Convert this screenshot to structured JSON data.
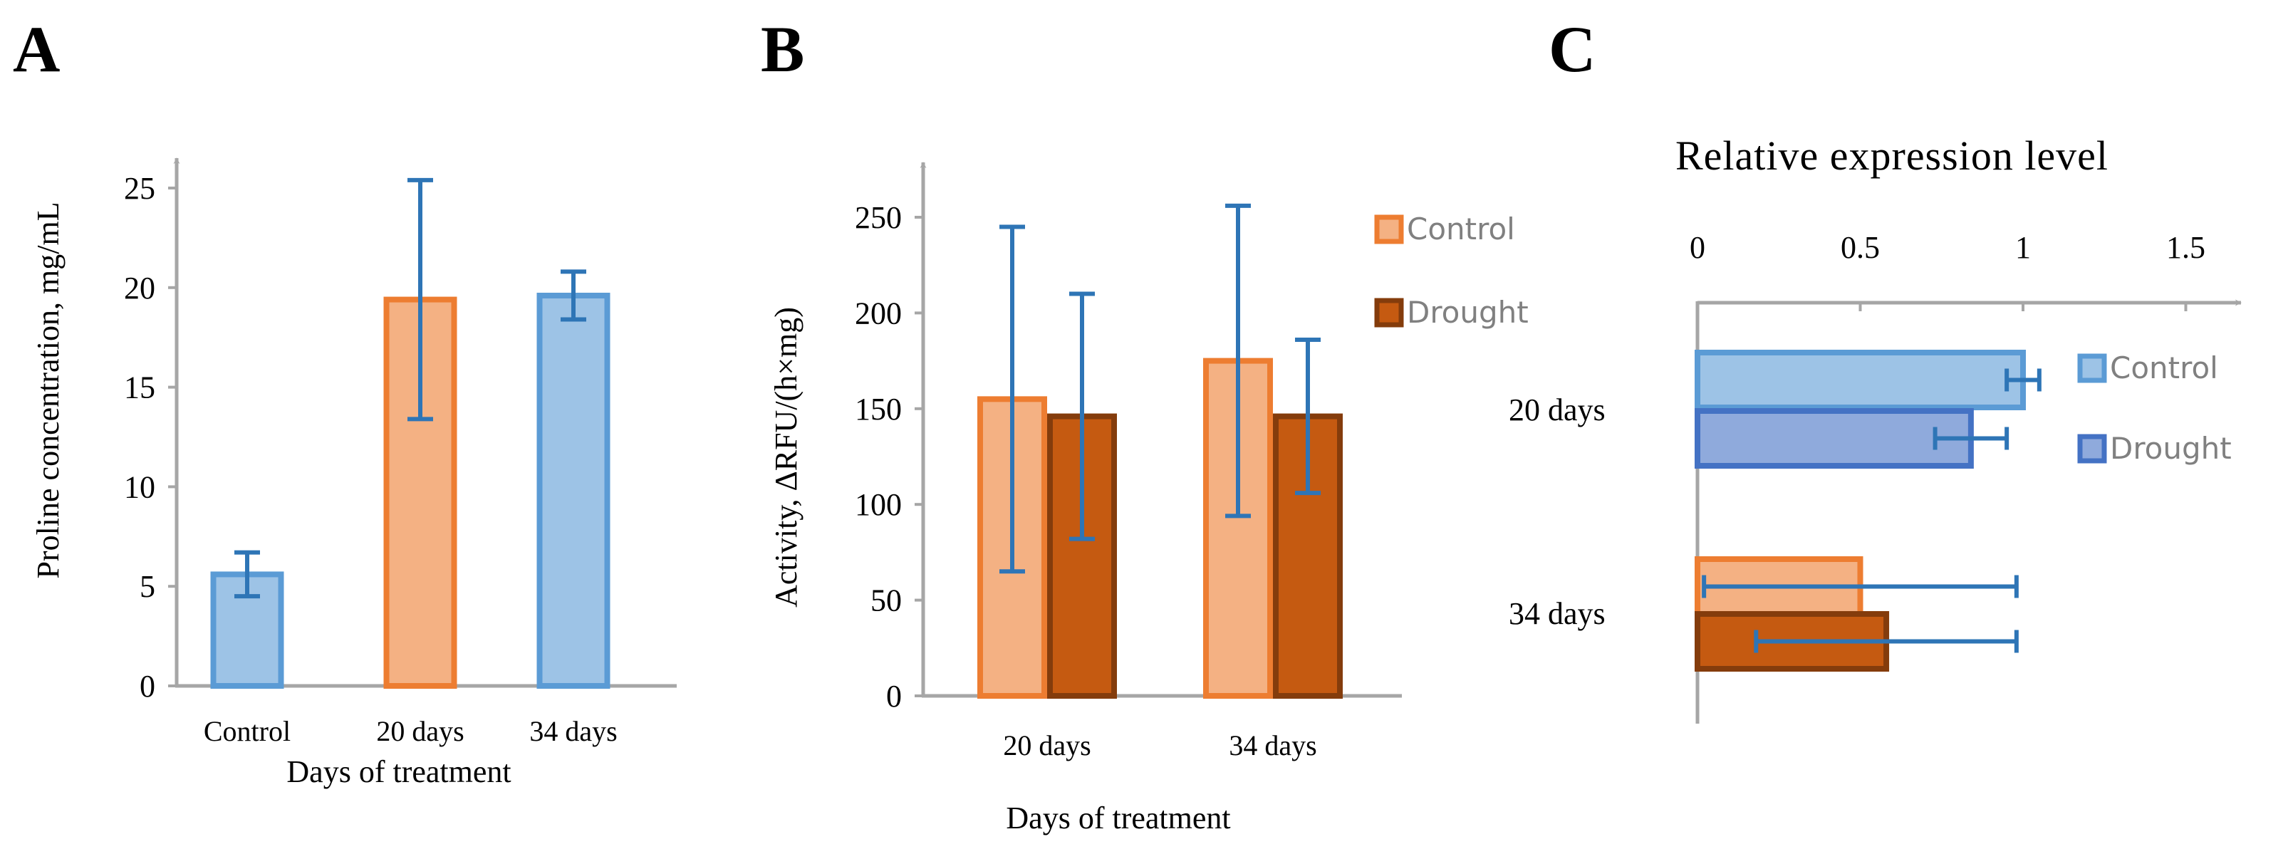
{
  "colors": {
    "axis": "#a6a6a6",
    "error_bar": "#2e75b6",
    "control_blue_fill": "#9dc3e6",
    "control_blue_stroke": "#5b9bd5",
    "drought_blue_fill": "#8faadc",
    "drought_blue_stroke": "#4472c4",
    "orange_light_fill": "#f4b183",
    "orange_light_stroke": "#ed7d31",
    "orange_dark_fill": "#c55a11",
    "orange_dark_stroke": "#843c0c"
  },
  "chart_data": [
    {
      "panel_label": "A",
      "type": "bar",
      "categories": [
        "Control",
        "20 days",
        "34 days"
      ],
      "values": [
        5.6,
        19.4,
        19.6
      ],
      "errors": [
        1.1,
        6.0,
        1.2
      ],
      "bar_colors": [
        "blue",
        "orange",
        "blue"
      ],
      "ylabel": "Proline concentration, mg/mL",
      "xlabel": "Days of treatment",
      "ylim": [
        0,
        25
      ],
      "yticks": [
        "0",
        "5",
        "10",
        "15",
        "20",
        "25"
      ],
      "grid": false
    },
    {
      "panel_label": "B",
      "type": "bar",
      "categories": [
        "20 days",
        "34 days"
      ],
      "series": [
        {
          "name": "Control",
          "values": [
            155,
            175
          ],
          "errors": [
            90,
            81
          ]
        },
        {
          "name": "Drought",
          "values": [
            146,
            146
          ],
          "errors": [
            64,
            40
          ]
        }
      ],
      "ylabel": "Activity, ΔRFU/(h×mg)",
      "xlabel": "Days of treatment",
      "ylim": [
        0,
        250
      ],
      "yticks": [
        "0",
        "50",
        "100",
        "150",
        "200",
        "250"
      ],
      "legend": "right",
      "grid": false
    },
    {
      "panel_label": "C",
      "type": "bar",
      "orientation": "horizontal",
      "title": "Relative expression level",
      "categories": [
        "20 days",
        "34 days"
      ],
      "groups": [
        {
          "category": "20 days",
          "series": [
            {
              "name": "Control",
              "value": 1.0,
              "error": 0.05
            },
            {
              "name": "Drought",
              "value": 0.84,
              "error": 0.11
            }
          ]
        },
        {
          "category": "34 days",
          "series": [
            {
              "value": 0.5,
              "error": 0.48
            },
            {
              "value": 0.58,
              "error": 0.4
            }
          ]
        }
      ],
      "xlim": [
        0,
        1.7
      ],
      "xticks": [
        "0",
        "0.5",
        "1",
        "1.5"
      ],
      "legend": "right",
      "grid": false
    }
  ]
}
